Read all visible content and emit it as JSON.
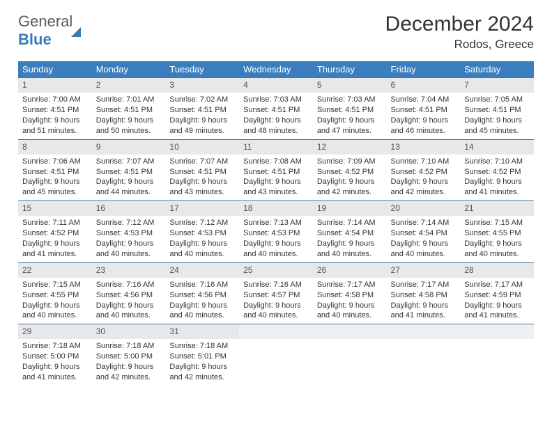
{
  "logo": {
    "part1": "General",
    "part2": "Blue"
  },
  "header": {
    "month_title": "December 2024",
    "location": "Rodos, Greece"
  },
  "style": {
    "header_bg": "#3a7ebe",
    "header_text": "#ffffff",
    "daynum_bg": "#e8e8e8",
    "row_border": "#397ab3",
    "body_text": "#333333",
    "logo_gray": "#5a5a5a",
    "logo_blue": "#3a7ab8",
    "title_fontsize": 30,
    "location_fontsize": 17,
    "dayheader_fontsize": 13,
    "cell_fontsize": 11
  },
  "day_headers": [
    "Sunday",
    "Monday",
    "Tuesday",
    "Wednesday",
    "Thursday",
    "Friday",
    "Saturday"
  ],
  "weeks": [
    [
      {
        "n": "1",
        "sr": "7:00 AM",
        "ss": "4:51 PM",
        "dh": "9",
        "dm": "51"
      },
      {
        "n": "2",
        "sr": "7:01 AM",
        "ss": "4:51 PM",
        "dh": "9",
        "dm": "50"
      },
      {
        "n": "3",
        "sr": "7:02 AM",
        "ss": "4:51 PM",
        "dh": "9",
        "dm": "49"
      },
      {
        "n": "4",
        "sr": "7:03 AM",
        "ss": "4:51 PM",
        "dh": "9",
        "dm": "48"
      },
      {
        "n": "5",
        "sr": "7:03 AM",
        "ss": "4:51 PM",
        "dh": "9",
        "dm": "47"
      },
      {
        "n": "6",
        "sr": "7:04 AM",
        "ss": "4:51 PM",
        "dh": "9",
        "dm": "46"
      },
      {
        "n": "7",
        "sr": "7:05 AM",
        "ss": "4:51 PM",
        "dh": "9",
        "dm": "45"
      }
    ],
    [
      {
        "n": "8",
        "sr": "7:06 AM",
        "ss": "4:51 PM",
        "dh": "9",
        "dm": "45"
      },
      {
        "n": "9",
        "sr": "7:07 AM",
        "ss": "4:51 PM",
        "dh": "9",
        "dm": "44"
      },
      {
        "n": "10",
        "sr": "7:07 AM",
        "ss": "4:51 PM",
        "dh": "9",
        "dm": "43"
      },
      {
        "n": "11",
        "sr": "7:08 AM",
        "ss": "4:51 PM",
        "dh": "9",
        "dm": "43"
      },
      {
        "n": "12",
        "sr": "7:09 AM",
        "ss": "4:52 PM",
        "dh": "9",
        "dm": "42"
      },
      {
        "n": "13",
        "sr": "7:10 AM",
        "ss": "4:52 PM",
        "dh": "9",
        "dm": "42"
      },
      {
        "n": "14",
        "sr": "7:10 AM",
        "ss": "4:52 PM",
        "dh": "9",
        "dm": "41"
      }
    ],
    [
      {
        "n": "15",
        "sr": "7:11 AM",
        "ss": "4:52 PM",
        "dh": "9",
        "dm": "41"
      },
      {
        "n": "16",
        "sr": "7:12 AM",
        "ss": "4:53 PM",
        "dh": "9",
        "dm": "40"
      },
      {
        "n": "17",
        "sr": "7:12 AM",
        "ss": "4:53 PM",
        "dh": "9",
        "dm": "40"
      },
      {
        "n": "18",
        "sr": "7:13 AM",
        "ss": "4:53 PM",
        "dh": "9",
        "dm": "40"
      },
      {
        "n": "19",
        "sr": "7:14 AM",
        "ss": "4:54 PM",
        "dh": "9",
        "dm": "40"
      },
      {
        "n": "20",
        "sr": "7:14 AM",
        "ss": "4:54 PM",
        "dh": "9",
        "dm": "40"
      },
      {
        "n": "21",
        "sr": "7:15 AM",
        "ss": "4:55 PM",
        "dh": "9",
        "dm": "40"
      }
    ],
    [
      {
        "n": "22",
        "sr": "7:15 AM",
        "ss": "4:55 PM",
        "dh": "9",
        "dm": "40"
      },
      {
        "n": "23",
        "sr": "7:16 AM",
        "ss": "4:56 PM",
        "dh": "9",
        "dm": "40"
      },
      {
        "n": "24",
        "sr": "7:16 AM",
        "ss": "4:56 PM",
        "dh": "9",
        "dm": "40"
      },
      {
        "n": "25",
        "sr": "7:16 AM",
        "ss": "4:57 PM",
        "dh": "9",
        "dm": "40"
      },
      {
        "n": "26",
        "sr": "7:17 AM",
        "ss": "4:58 PM",
        "dh": "9",
        "dm": "40"
      },
      {
        "n": "27",
        "sr": "7:17 AM",
        "ss": "4:58 PM",
        "dh": "9",
        "dm": "41"
      },
      {
        "n": "28",
        "sr": "7:17 AM",
        "ss": "4:59 PM",
        "dh": "9",
        "dm": "41"
      }
    ],
    [
      {
        "n": "29",
        "sr": "7:18 AM",
        "ss": "5:00 PM",
        "dh": "9",
        "dm": "41"
      },
      {
        "n": "30",
        "sr": "7:18 AM",
        "ss": "5:00 PM",
        "dh": "9",
        "dm": "42"
      },
      {
        "n": "31",
        "sr": "7:18 AM",
        "ss": "5:01 PM",
        "dh": "9",
        "dm": "42"
      },
      null,
      null,
      null,
      null
    ]
  ],
  "labels": {
    "sunrise": "Sunrise:",
    "sunset": "Sunset:",
    "daylight": "Daylight:",
    "hours": "hours",
    "and": "and",
    "minutes": "minutes."
  }
}
